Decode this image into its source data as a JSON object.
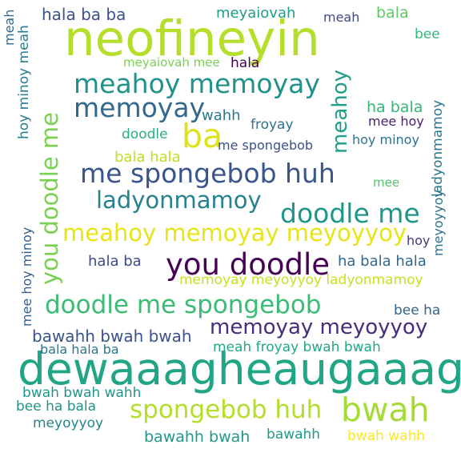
{
  "words": [
    {
      "text": "neofineyin",
      "color": "#b5de2b"
    },
    {
      "text": "dewaaagheaugaaagh",
      "color": "#21a685"
    },
    {
      "text": "hala ba ba",
      "color": "#3b528b"
    },
    {
      "text": "meyaiovah",
      "color": "#1f9e89"
    },
    {
      "text": "meah",
      "color": "#3e4989"
    },
    {
      "text": "bala",
      "color": "#5ec962"
    },
    {
      "text": "bee",
      "color": "#35b779"
    },
    {
      "text": "meyaiovah mee",
      "color": "#7ad151"
    },
    {
      "text": "hala",
      "color": "#440154"
    },
    {
      "text": "meahoy memoyay",
      "color": "#21918c"
    },
    {
      "text": "memoyay",
      "color": "#31688e"
    },
    {
      "text": "wahh",
      "color": "#2a788e"
    },
    {
      "text": "ba",
      "color": "#dde318"
    },
    {
      "text": "doodle",
      "color": "#29af7f"
    },
    {
      "text": "froyay",
      "color": "#2c728e"
    },
    {
      "text": "ha bala",
      "color": "#35b779"
    },
    {
      "text": "mee hoy",
      "color": "#482173"
    },
    {
      "text": "hoy minoy",
      "color": "#2c728e"
    },
    {
      "text": "me spongebob",
      "color": "#3b528b"
    },
    {
      "text": "bala hala",
      "color": "#bddf26"
    },
    {
      "text": "me spongebob huh",
      "color": "#39568c"
    },
    {
      "text": "mee",
      "color": "#52c569"
    },
    {
      "text": "ladyonmamoy",
      "color": "#26828e"
    },
    {
      "text": "doodle me",
      "color": "#1f968b"
    },
    {
      "text": "meahoy memoyay meyoyyoy",
      "color": "#e7e419"
    },
    {
      "text": "hoy",
      "color": "#453781"
    },
    {
      "text": "hala ba",
      "color": "#3e4a89"
    },
    {
      "text": "you doodle",
      "color": "#440154"
    },
    {
      "text": "ha bala hala",
      "color": "#31688e"
    },
    {
      "text": "memoyay meyoyyoy ladyonmamoy",
      "color": "#c8e020"
    },
    {
      "text": "doodle me spongebob",
      "color": "#3bbb75"
    },
    {
      "text": "bee ha",
      "color": "#33638d"
    },
    {
      "text": "bawahh bwah bwah",
      "color": "#3b528b"
    },
    {
      "text": "memoyay meyoyyoy",
      "color": "#472d7b"
    },
    {
      "text": "bala hala ba",
      "color": "#2a788e"
    },
    {
      "text": "meah froyay bwah bwah",
      "color": "#22a884"
    },
    {
      "text": "bwah",
      "color": "#a5db36"
    },
    {
      "text": "bwah bwah wahh",
      "color": "#1f968b"
    },
    {
      "text": "spongebob huh",
      "color": "#b5de2b"
    },
    {
      "text": "bee ha bala",
      "color": "#21918c"
    },
    {
      "text": "meyoyyoy",
      "color": "#25858e"
    },
    {
      "text": "bawahh bwah",
      "color": "#1f9a8a"
    },
    {
      "text": "bawahh",
      "color": "#1e9b8a"
    },
    {
      "text": "bwah wahh",
      "color": "#fde725"
    },
    {
      "text": "meah",
      "color": "#31688e"
    },
    {
      "text": "hoy minoy meah",
      "color": "#287c8e"
    },
    {
      "text": "you doodle me",
      "color": "#7ad151"
    },
    {
      "text": "meahoy",
      "color": "#1f9e89"
    },
    {
      "text": "ladyonmamoy",
      "color": "#2a788e"
    },
    {
      "text": "meyoyyoy",
      "color": "#2c728e"
    },
    {
      "text": "mee hoy minoy",
      "color": "#355f8d"
    }
  ]
}
